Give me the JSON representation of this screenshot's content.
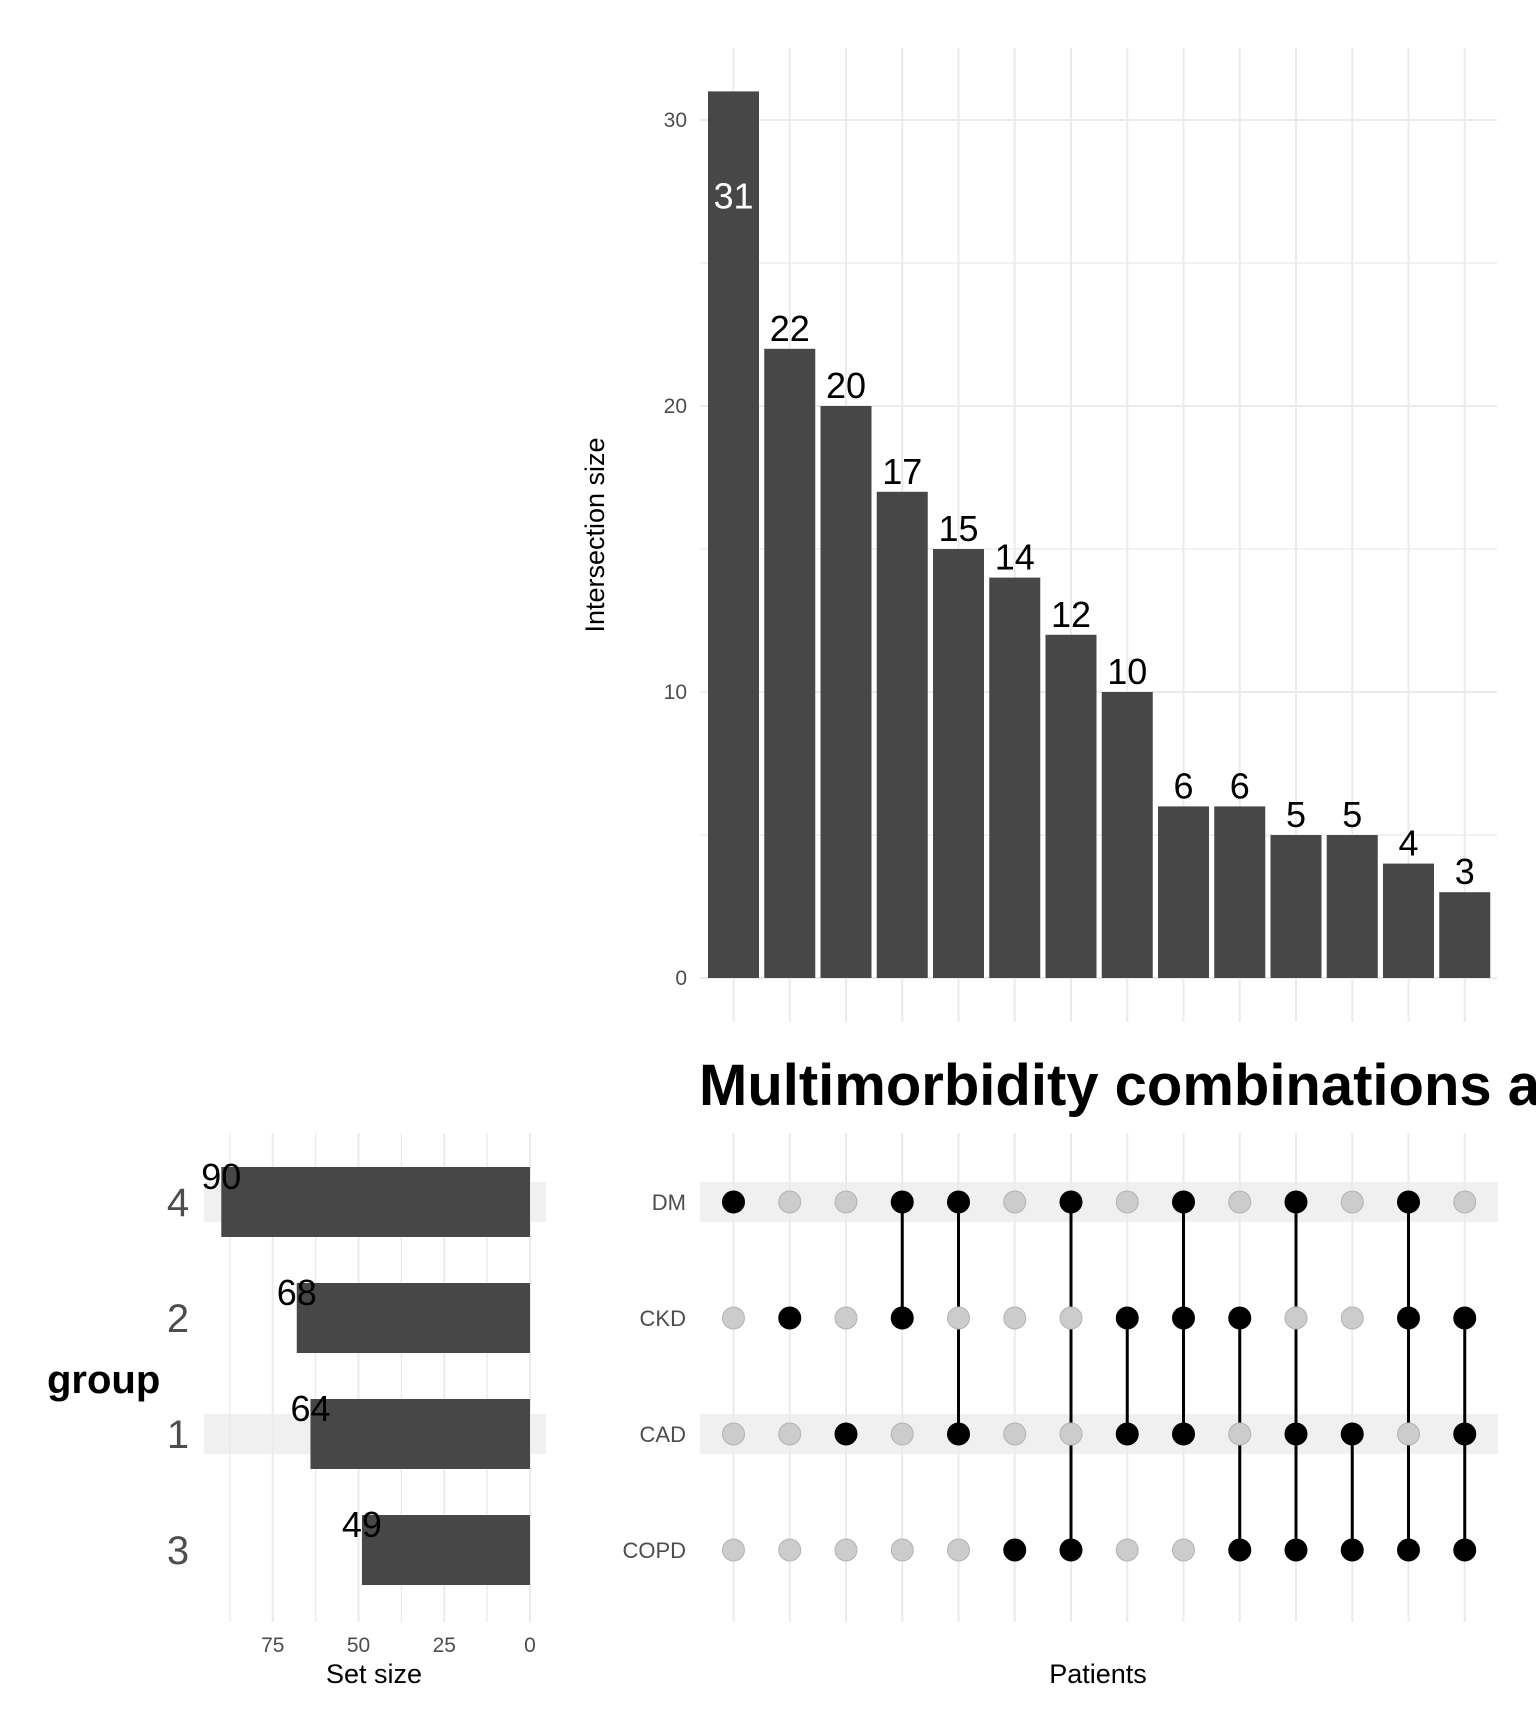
{
  "chart_data": {
    "type": "bar",
    "title": "Multimorbidity combinations a",
    "intersections": {
      "ylabel": "Intersection size",
      "xlabel": "Patients",
      "ylim": [
        0,
        32
      ],
      "yticks": [
        "0",
        "10",
        "20",
        "30"
      ],
      "ytick_values": [
        0,
        10,
        20,
        30
      ],
      "values": [
        31,
        22,
        20,
        17,
        15,
        14,
        12,
        10,
        6,
        6,
        5,
        5,
        4,
        3
      ],
      "labels": [
        "31",
        "22",
        "20",
        "17",
        "15",
        "14",
        "12",
        "10",
        "6",
        "6",
        "5",
        "5",
        "4",
        "3"
      ]
    },
    "sets": [
      "DM",
      "CKD",
      "CAD",
      "COPD"
    ],
    "matrix": [
      [
        "DM"
      ],
      [
        "CKD"
      ],
      [
        "CAD"
      ],
      [
        "DM",
        "CKD"
      ],
      [
        "DM",
        "CAD"
      ],
      [
        "COPD"
      ],
      [
        "DM",
        "COPD"
      ],
      [
        "CKD",
        "CAD"
      ],
      [
        "DM",
        "CKD",
        "CAD"
      ],
      [
        "CKD",
        "COPD"
      ],
      [
        "DM",
        "CAD",
        "COPD"
      ],
      [
        "CAD",
        "COPD"
      ],
      [
        "DM",
        "CKD",
        "COPD"
      ],
      [
        "CKD",
        "CAD",
        "COPD"
      ]
    ],
    "set_sizes": {
      "xlabel": "Set size",
      "legend_title": "group",
      "groups": [
        "4",
        "2",
        "1",
        "3"
      ],
      "values": [
        90,
        68,
        64,
        49
      ],
      "labels": [
        "90",
        "68",
        "64",
        "49"
      ],
      "xlim": [
        0,
        95
      ],
      "xticks": [
        "75",
        "50",
        "25",
        "0"
      ],
      "xtick_values": [
        75,
        50,
        25,
        0
      ]
    },
    "colors": {
      "bar": "#474747",
      "dot_active": "#000000",
      "dot_inactive": "#cccccc",
      "stripe": "#f0f0f0",
      "grid": "#ebebeb"
    }
  }
}
